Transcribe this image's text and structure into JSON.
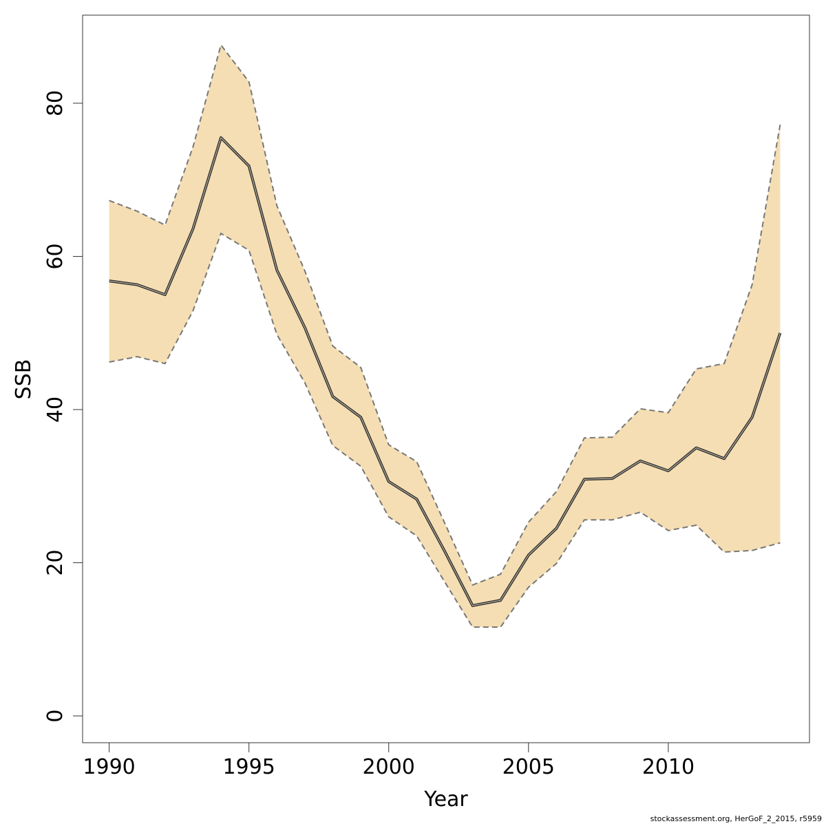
{
  "chart_data": {
    "type": "line",
    "title": "",
    "xlabel": "Year",
    "ylabel": "SSB",
    "xlim": [
      1989.05,
      2015.05
    ],
    "ylim": [
      -3.5,
      91.5
    ],
    "x_ticks": [
      1990,
      1995,
      2000,
      2005,
      2010
    ],
    "y_ticks": [
      0,
      20,
      40,
      60,
      80
    ],
    "grid": false,
    "band_color": "#F5DEB3",
    "line_color": "#333333",
    "bound_color": "#777777",
    "x": [
      1990,
      1991,
      1992,
      1993,
      1994,
      1995,
      1996,
      1997,
      1998,
      1999,
      2000,
      2001,
      2002,
      2003,
      2004,
      2005,
      2006,
      2007,
      2008,
      2009,
      2010,
      2011,
      2012,
      2013,
      2014
    ],
    "series": [
      {
        "role": "estimate",
        "values": [
          56.8,
          56.3,
          55.0,
          63.6,
          75.5,
          71.8,
          58.2,
          50.7,
          41.7,
          39.0,
          30.6,
          28.3,
          21.5,
          14.4,
          15.1,
          21.0,
          24.5,
          30.9,
          31.0,
          33.3,
          32.0,
          35.0,
          33.6,
          39.0,
          50.0
        ]
      },
      {
        "role": "upper",
        "values": [
          67.3,
          65.9,
          64.1,
          74.3,
          87.6,
          82.8,
          66.6,
          58.1,
          48.3,
          45.5,
          35.4,
          33.2,
          25.2,
          17.1,
          18.5,
          25.3,
          29.3,
          36.3,
          36.4,
          40.1,
          39.6,
          45.3,
          46.0,
          56.3,
          77.2
        ]
      },
      {
        "role": "lower",
        "values": [
          46.2,
          46.9,
          46.0,
          52.9,
          63.0,
          60.8,
          49.8,
          43.5,
          35.3,
          32.6,
          26.0,
          23.5,
          17.5,
          11.6,
          11.6,
          16.8,
          19.9,
          25.6,
          25.6,
          26.6,
          24.2,
          24.9,
          21.4,
          21.6,
          22.6
        ]
      }
    ]
  },
  "footer": {
    "note": "stockassessment.org, HerGoF_2_2015, r5959"
  }
}
